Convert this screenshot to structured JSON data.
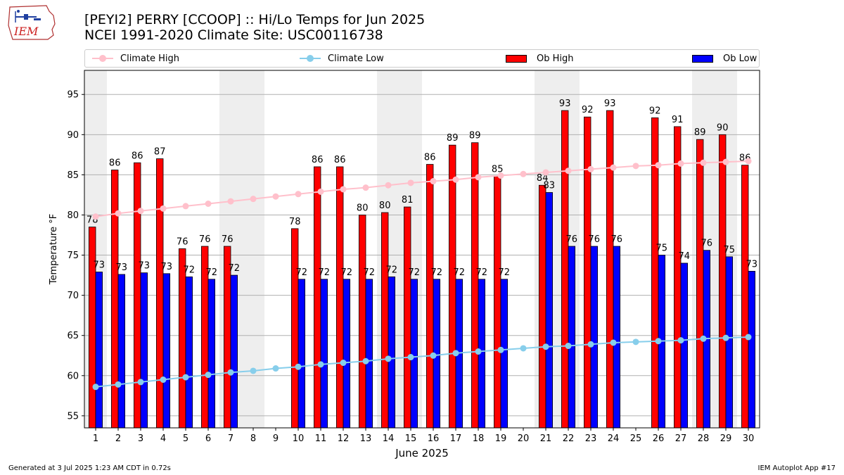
{
  "logo": {
    "text": "IEM"
  },
  "header": {
    "title_line1": "[PEYI2] PERRY [CCOOP] :: Hi/Lo Temps for Jun 2025",
    "title_line2": "NCEI 1991-2020 Climate Site: USC00116738"
  },
  "legend": {
    "climate_high": "Climate High",
    "climate_low": "Climate Low",
    "ob_high": "Ob High",
    "ob_low": "Ob Low"
  },
  "colors": {
    "ob_high": "#ff0000",
    "ob_low": "#0000ff",
    "climate_high": "#ffc0cb",
    "climate_low": "#87ceeb",
    "weekend_band": "#eeeeee",
    "grid": "#b0b0b0"
  },
  "footer": {
    "left": "Generated at 3 Jul 2025 1:23 AM CDT in 0.72s",
    "right": "IEM Autoplot App #17"
  },
  "chart_data": {
    "type": "bar",
    "xlabel": "June 2025",
    "ylabel": "Temperature °F",
    "ylim": [
      53.5,
      98
    ],
    "yticks": [
      55,
      60,
      65,
      70,
      75,
      80,
      85,
      90,
      95
    ],
    "grid": true,
    "legend_position": "top",
    "categories": [
      "1",
      "2",
      "3",
      "4",
      "5",
      "6",
      "7",
      "8",
      "9",
      "10",
      "11",
      "12",
      "13",
      "14",
      "15",
      "16",
      "17",
      "18",
      "19",
      "20",
      "21",
      "22",
      "23",
      "24",
      "25",
      "26",
      "27",
      "28",
      "29",
      "30"
    ],
    "weekend_days": [
      1,
      7,
      8,
      14,
      15,
      21,
      22,
      28,
      29
    ],
    "series": [
      {
        "name": "Ob High",
        "kind": "bar",
        "values": [
          78.5,
          85.6,
          86.5,
          87,
          75.8,
          76.1,
          76.1,
          null,
          null,
          78.3,
          86,
          86,
          80,
          80.3,
          81,
          86.3,
          88.7,
          89,
          84.8,
          null,
          83.7,
          93,
          92.2,
          93,
          null,
          92.1,
          91,
          89.4,
          90,
          86.2
        ],
        "labels": [
          "78",
          "86",
          "86",
          "87",
          "76",
          "76",
          "76",
          null,
          null,
          "78",
          "86",
          "86",
          "80",
          "80",
          "81",
          "86",
          "89",
          "89",
          "85",
          null,
          "84",
          "93",
          "92",
          "93",
          null,
          "92",
          "91",
          "89",
          "90",
          "86"
        ]
      },
      {
        "name": "Ob Low",
        "kind": "bar",
        "values": [
          72.9,
          72.6,
          72.8,
          72.7,
          72.3,
          72,
          72.5,
          null,
          null,
          72,
          72,
          72,
          72,
          72.3,
          72,
          72,
          72,
          72,
          72,
          null,
          82.8,
          76.1,
          76.1,
          76.1,
          null,
          75,
          74,
          75.6,
          74.8,
          73
        ],
        "labels": [
          "73",
          "73",
          "73",
          "73",
          "72",
          "72",
          "72",
          null,
          null,
          "72",
          "72",
          "72",
          "72",
          "72",
          "72",
          "72",
          "72",
          "72",
          "72",
          null,
          "83",
          "76",
          "76",
          "76",
          null,
          "75",
          "74",
          "76",
          "75",
          "73"
        ]
      },
      {
        "name": "Climate High",
        "kind": "line",
        "values": [
          79.8,
          80.2,
          80.5,
          80.8,
          81.1,
          81.4,
          81.7,
          82,
          82.3,
          82.6,
          82.9,
          83.2,
          83.4,
          83.7,
          84,
          84.2,
          84.4,
          84.7,
          84.9,
          85.1,
          85.3,
          85.5,
          85.7,
          85.9,
          86.1,
          86.2,
          86.4,
          86.5,
          86.6,
          86.7
        ]
      },
      {
        "name": "Climate Low",
        "kind": "line",
        "values": [
          58.6,
          58.9,
          59.2,
          59.5,
          59.8,
          60.1,
          60.4,
          60.6,
          60.9,
          61.1,
          61.4,
          61.6,
          61.8,
          62.1,
          62.3,
          62.5,
          62.8,
          63,
          63.2,
          63.4,
          63.6,
          63.7,
          63.9,
          64.1,
          64.2,
          64.3,
          64.4,
          64.6,
          64.7,
          64.8
        ]
      }
    ]
  }
}
